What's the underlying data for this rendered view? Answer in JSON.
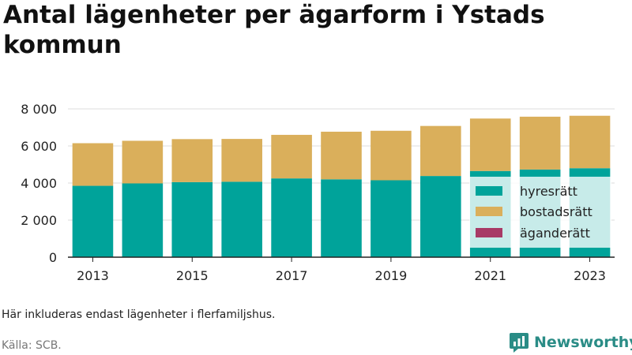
{
  "colors": {
    "hyresratt": "#00a39a",
    "bostadsratt": "#daaf5b",
    "aganderatt": "#a83a66",
    "grid": "#dddddd",
    "axis": "#222222",
    "brand": "#2a8c86"
  },
  "footer": {
    "note": "Här inkluderas endast lägenheter i flerfamiljshus.",
    "source": "Källa: SCB.",
    "brand": "Newsworthy",
    "brand_icon": "newsworthy-logo-icon"
  },
  "chart_data": {
    "type": "bar",
    "stacked": true,
    "title": "Antal lägenheter per ägarform i Ystads kommun",
    "xlabel": "",
    "ylabel": "",
    "categories": [
      "2013",
      "2014",
      "2015",
      "2016",
      "2017",
      "2018",
      "2019",
      "2020",
      "2021",
      "2022",
      "2023"
    ],
    "x_tick_labels": [
      "2013",
      "2015",
      "2017",
      "2019",
      "2021",
      "2023"
    ],
    "y_ticks": [
      0,
      2000,
      4000,
      6000,
      8000
    ],
    "y_tick_labels": [
      "0",
      "2 000",
      "4 000",
      "6 000",
      "8 000"
    ],
    "ylim": [
      0,
      8300
    ],
    "grid": true,
    "legend_position": "lower-right",
    "series": [
      {
        "name": "hyresrätt",
        "values": [
          3850,
          3980,
          4050,
          4070,
          4250,
          4200,
          4150,
          4380,
          4650,
          4730,
          4800
        ]
      },
      {
        "name": "bostadsrätt",
        "values": [
          2300,
          2300,
          2320,
          2310,
          2350,
          2570,
          2670,
          2700,
          2830,
          2850,
          2830
        ]
      },
      {
        "name": "äganderätt",
        "values": [
          0,
          0,
          0,
          0,
          0,
          0,
          0,
          0,
          0,
          0,
          0
        ]
      }
    ]
  }
}
